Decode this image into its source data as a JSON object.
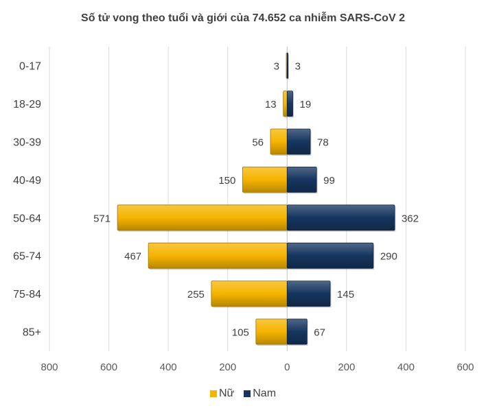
{
  "chart_data": {
    "type": "bar",
    "orientation": "horizontal",
    "layout": "population-pyramid",
    "title": "Số tử vong theo tuổi và giới của 74.652 ca nhiễm SARS-CoV 2",
    "categories": [
      "0-17",
      "18-29",
      "30-39",
      "40-49",
      "50-64",
      "65-74",
      "75-84",
      "85+"
    ],
    "series": [
      {
        "name": "Nữ",
        "side": "left",
        "color": "#F5B400",
        "values": [
          3,
          13,
          56,
          150,
          571,
          467,
          255,
          105
        ]
      },
      {
        "name": "Nam",
        "side": "right",
        "color": "#16355F",
        "values": [
          3,
          19,
          78,
          99,
          362,
          290,
          145,
          67
        ]
      }
    ],
    "xlim": [
      -800,
      600
    ],
    "x_ticks": [
      {
        "value": -800,
        "label": "800"
      },
      {
        "value": -600,
        "label": "600"
      },
      {
        "value": -400,
        "label": "400"
      },
      {
        "value": -200,
        "label": "200"
      },
      {
        "value": 0,
        "label": "0"
      },
      {
        "value": 200,
        "label": "200"
      },
      {
        "value": 400,
        "label": "400"
      },
      {
        "value": 600,
        "label": "600"
      }
    ],
    "grid": "vertical",
    "legend": "bottom"
  }
}
